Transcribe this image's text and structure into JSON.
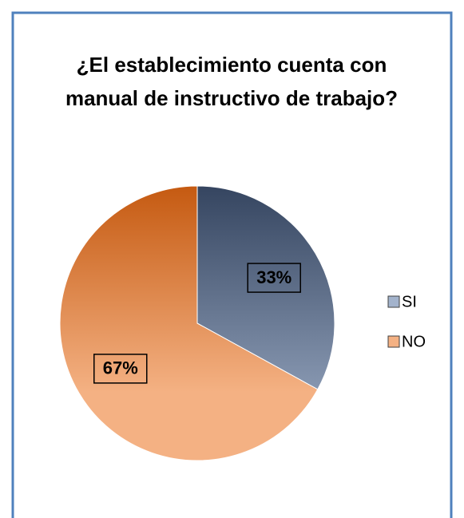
{
  "chart_data": {
    "type": "pie",
    "title": "¿El establecimiento cuenta con manual de instructivo de trabajo?",
    "categories": [
      "SI",
      "NO"
    ],
    "values": [
      33,
      67
    ],
    "value_labels": [
      "33%",
      "67%"
    ],
    "colors": [
      "#a3b3cc",
      "#f4b183"
    ],
    "legend": "right"
  }
}
